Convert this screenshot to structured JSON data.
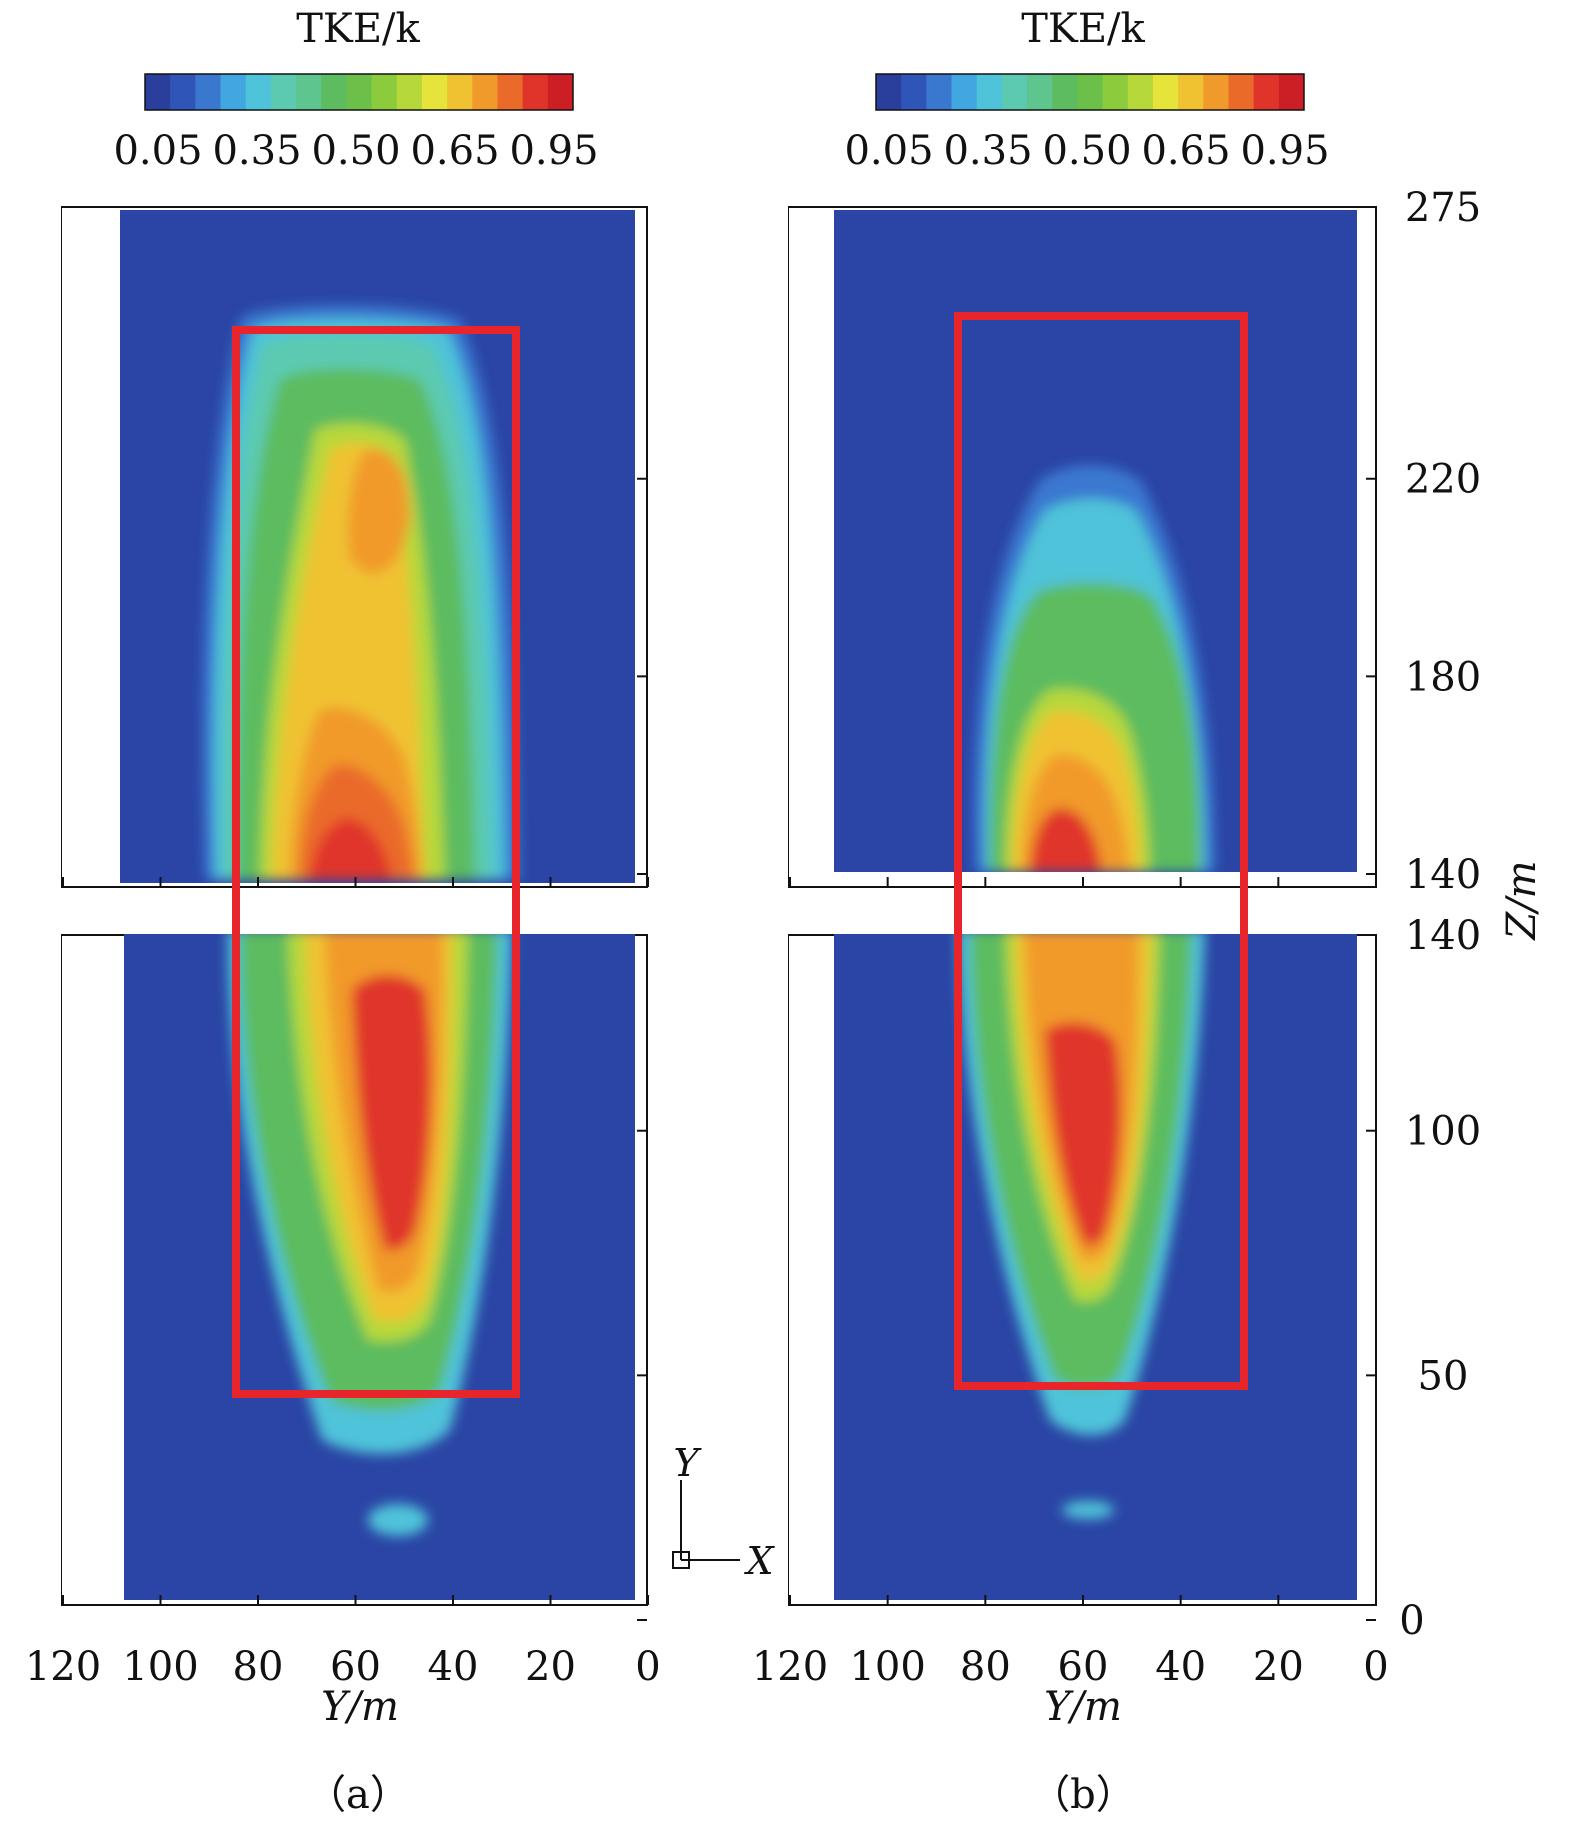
{
  "chart_data": {
    "type": "heatmap",
    "colorbar": {
      "title": "TKE/k",
      "tick_labels": [
        "0.05",
        "0.35",
        "0.50",
        "0.65",
        "0.95"
      ],
      "colors": [
        "#2a3f9b",
        "#2f55b8",
        "#3a78d0",
        "#42a6e0",
        "#4fc3d9",
        "#5ccab1",
        "#5fc58f",
        "#5cbc5f",
        "#6cc04a",
        "#8ccb3c",
        "#b7d83a",
        "#e6e43a",
        "#f0c232",
        "#f19a2c",
        "#ea6a2a",
        "#e0342a",
        "#cc1f25"
      ]
    },
    "x_axis": {
      "label": "Y/m",
      "ticks": [
        120,
        100,
        80,
        60,
        40,
        20,
        0
      ],
      "range": [
        120,
        0
      ]
    },
    "y_axis": {
      "label": "Z/m",
      "upper_ticks": [
        275,
        220,
        180,
        140
      ],
      "lower_ticks": [
        140,
        100,
        50,
        0
      ],
      "upper_range": [
        140,
        275
      ],
      "lower_range": [
        0,
        140
      ]
    },
    "panels": [
      {
        "caption": "（a）",
        "rectangle": {
          "y_from": 84,
          "y_to": 27,
          "z_from": 45,
          "z_to": 250
        },
        "field": {
          "core_y": 58,
          "core_z_low": 140,
          "core_z_high": 97,
          "max_level": 0.95,
          "wake_end_z": 40
        }
      },
      {
        "caption": "（b）",
        "rectangle": {
          "y_from": 85,
          "y_to": 28,
          "z_from": 48,
          "z_to": 255
        },
        "field": {
          "core_y": 60,
          "core_z_low": 140,
          "core_z_high": 100,
          "max_level": 0.9,
          "wake_end_z": 48
        }
      }
    ],
    "coordinate_axes": {
      "vertical": "Y",
      "horizontal": "X"
    }
  }
}
